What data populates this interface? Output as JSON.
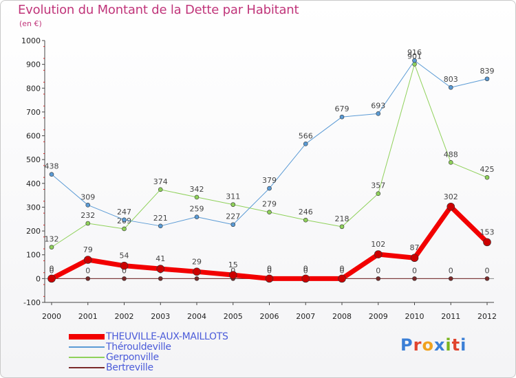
{
  "header": {
    "title": "Evolution du Montant de la Dette par Habitant",
    "unit": "(en €)"
  },
  "brand": {
    "text": "Proxiti",
    "colors": [
      "#3b7fd6",
      "#e0442e",
      "#f0a21e",
      "#3b7fd6",
      "#7ab41e",
      "#e0442e",
      "#3b7fd6"
    ]
  },
  "chart_data": {
    "type": "line",
    "title": "Evolution du Montant de la Dette par Habitant",
    "ylabel": "(en €)",
    "xlabel": "",
    "x": [
      2000,
      2001,
      2002,
      2003,
      2004,
      2005,
      2006,
      2007,
      2008,
      2009,
      2010,
      2011,
      2012
    ],
    "ylim": [
      -100,
      1000
    ],
    "yticks": [
      -100,
      0,
      100,
      200,
      300,
      400,
      500,
      600,
      700,
      800,
      900,
      1000
    ],
    "grid": false,
    "legend_position": "bottom-left",
    "series": [
      {
        "name": "Bertreville",
        "color": "#7a2a2a",
        "width": 1,
        "values": [
          0,
          0,
          0,
          0,
          0,
          0,
          0,
          0,
          0,
          0,
          0,
          0,
          0
        ]
      },
      {
        "name": "Gerponville",
        "color": "#8fd15a",
        "width": 1,
        "values": [
          132,
          232,
          209,
          374,
          342,
          311,
          279,
          246,
          218,
          357,
          901,
          488,
          425
        ]
      },
      {
        "name": "Thérouldeville",
        "color": "#5b9bd5",
        "width": 1,
        "values": [
          438,
          309,
          247,
          221,
          259,
          227,
          379,
          566,
          679,
          693,
          916,
          803,
          839
        ]
      },
      {
        "name": "THEUVILLE-AUX-MAILLOTS",
        "color": "#f20000",
        "width": 7,
        "values": [
          0,
          79,
          54,
          41,
          29,
          15,
          0,
          0,
          0,
          102,
          87,
          302,
          153
        ]
      }
    ],
    "legend_order": [
      "THEUVILLE-AUX-MAILLOTS",
      "Thérouldeville",
      "Gerponville",
      "Bertreville"
    ]
  }
}
